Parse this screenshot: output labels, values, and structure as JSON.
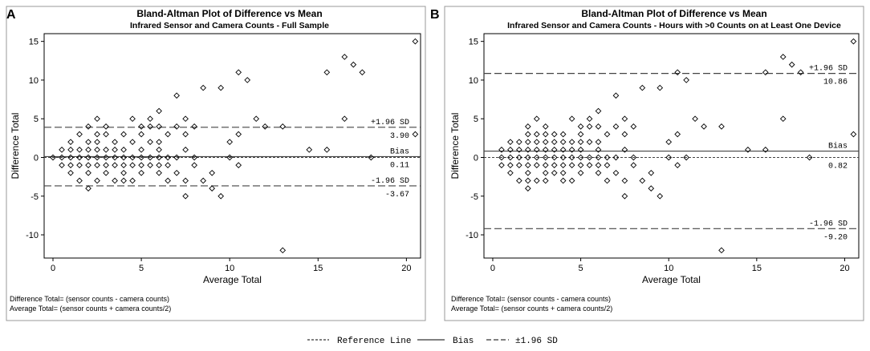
{
  "colors": {
    "axis": "#000000",
    "text": "#000000",
    "frame": "#999999",
    "marker": "#000000",
    "line": "#444444"
  },
  "legend": {
    "reference_label": "Reference Line",
    "bias_label": "Bias",
    "sd_label": "±1.96 SD"
  },
  "chart_data": [
    {
      "panel_label": "A",
      "type": "scatter",
      "title": "Bland-Altman Plot of Difference vs Mean",
      "subtitle": "Infrared Sensor and Camera Counts - Full Sample",
      "xlabel": "Average Total",
      "ylabel": "Difference Total",
      "xlim": [
        -0.5,
        20.8
      ],
      "ylim": [
        -13,
        16
      ],
      "xticks": [
        0,
        5,
        10,
        15,
        20
      ],
      "yticks": [
        -10,
        -5,
        0,
        5,
        10,
        15
      ],
      "reference_line": 0,
      "bias": {
        "value": 0.11,
        "label": "Bias",
        "value_text": "0.11"
      },
      "upper_loa": {
        "value": 3.9,
        "label": "+1.96 SD",
        "value_text": "3.90"
      },
      "lower_loa": {
        "value": -3.67,
        "label": "-1.96 SD",
        "value_text": "-3.67"
      },
      "footnotes": [
        "Difference Total= (sensor counts - camera counts)",
        "Average Total= (sensor counts + camera counts/2)"
      ],
      "points": [
        [
          0,
          0
        ],
        [
          0.5,
          0
        ],
        [
          0.5,
          1
        ],
        [
          0.5,
          -1
        ],
        [
          1,
          0
        ],
        [
          1,
          1
        ],
        [
          1,
          2
        ],
        [
          1,
          -1
        ],
        [
          1,
          -2
        ],
        [
          1.5,
          0
        ],
        [
          1.5,
          1
        ],
        [
          1.5,
          3
        ],
        [
          1.5,
          -1
        ],
        [
          1.5,
          -3
        ],
        [
          2,
          0
        ],
        [
          2,
          1
        ],
        [
          2,
          2
        ],
        [
          2,
          4
        ],
        [
          2,
          -1
        ],
        [
          2,
          -2
        ],
        [
          2,
          -4
        ],
        [
          2.5,
          0
        ],
        [
          2.5,
          1
        ],
        [
          2.5,
          2
        ],
        [
          2.5,
          3
        ],
        [
          2.5,
          5
        ],
        [
          2.5,
          -1
        ],
        [
          2.5,
          -3
        ],
        [
          3,
          0
        ],
        [
          3,
          1
        ],
        [
          3,
          3
        ],
        [
          3,
          4
        ],
        [
          3,
          -1
        ],
        [
          3,
          -2
        ],
        [
          3.5,
          0
        ],
        [
          3.5,
          1
        ],
        [
          3.5,
          2
        ],
        [
          3.5,
          -1
        ],
        [
          3.5,
          -3
        ],
        [
          4,
          0
        ],
        [
          4,
          1
        ],
        [
          4,
          3
        ],
        [
          4,
          -1
        ],
        [
          4,
          -2
        ],
        [
          4,
          -3
        ],
        [
          4.5,
          0
        ],
        [
          4.5,
          2
        ],
        [
          4.5,
          5
        ],
        [
          4.5,
          -1
        ],
        [
          4.5,
          -3
        ],
        [
          5,
          0
        ],
        [
          5,
          1
        ],
        [
          5,
          3
        ],
        [
          5,
          4
        ],
        [
          5,
          -1
        ],
        [
          5,
          -2
        ],
        [
          5.5,
          0
        ],
        [
          5.5,
          2
        ],
        [
          5.5,
          4
        ],
        [
          5.5,
          5
        ],
        [
          5.5,
          -1
        ],
        [
          6,
          0
        ],
        [
          6,
          1
        ],
        [
          6,
          2
        ],
        [
          6,
          4
        ],
        [
          6,
          6
        ],
        [
          6,
          -1
        ],
        [
          6,
          -2
        ],
        [
          6.5,
          0
        ],
        [
          6.5,
          3
        ],
        [
          6.5,
          -1
        ],
        [
          6.5,
          -3
        ],
        [
          7,
          0
        ],
        [
          7,
          4
        ],
        [
          7,
          8
        ],
        [
          7,
          -2
        ],
        [
          7.5,
          1
        ],
        [
          7.5,
          3
        ],
        [
          7.5,
          5
        ],
        [
          7.5,
          -3
        ],
        [
          7.5,
          -5
        ],
        [
          8,
          0
        ],
        [
          8,
          4
        ],
        [
          8,
          -1
        ],
        [
          8.5,
          9
        ],
        [
          8.5,
          -3
        ],
        [
          9,
          -2
        ],
        [
          9,
          -4
        ],
        [
          9.5,
          9
        ],
        [
          9.5,
          -5
        ],
        [
          10,
          2
        ],
        [
          10,
          0
        ],
        [
          10.5,
          11
        ],
        [
          10.5,
          3
        ],
        [
          10.5,
          -1
        ],
        [
          11,
          10
        ],
        [
          11.5,
          5
        ],
        [
          12,
          4
        ],
        [
          13,
          4
        ],
        [
          13,
          -12
        ],
        [
          14.5,
          1
        ],
        [
          15.5,
          11
        ],
        [
          15.5,
          1
        ],
        [
          16.5,
          13
        ],
        [
          16.5,
          5
        ],
        [
          17,
          12
        ],
        [
          17.5,
          11
        ],
        [
          18,
          0
        ],
        [
          20.5,
          15
        ],
        [
          20.5,
          3
        ]
      ]
    },
    {
      "panel_label": "B",
      "type": "scatter",
      "title": "Bland-Altman Plot of Difference vs Mean",
      "subtitle": "Infrared Sensor and Camera Counts - Hours with >0 Counts on at Least One Device",
      "xlabel": "Average Total",
      "ylabel": "Difference Total",
      "xlim": [
        -0.5,
        20.8
      ],
      "ylim": [
        -13,
        16
      ],
      "xticks": [
        0,
        5,
        10,
        15,
        20
      ],
      "yticks": [
        -10,
        -5,
        0,
        5,
        10,
        15
      ],
      "reference_line": 0,
      "bias": {
        "value": 0.82,
        "label": "Bias",
        "value_text": "0.82"
      },
      "upper_loa": {
        "value": 10.86,
        "label": "+1.96 SD",
        "value_text": "10.86"
      },
      "lower_loa": {
        "value": -9.2,
        "label": "-1.96 SD",
        "value_text": "-9.20"
      },
      "footnotes": [
        "Difference Total= (sensor counts - camera counts)",
        "Average Total= (sensor counts + camera counts/2)"
      ],
      "points": [
        [
          0.5,
          1
        ],
        [
          0.5,
          0
        ],
        [
          0.5,
          -1
        ],
        [
          1,
          1
        ],
        [
          1,
          0
        ],
        [
          1,
          -1
        ],
        [
          1,
          2
        ],
        [
          1,
          -2
        ],
        [
          1.5,
          2
        ],
        [
          1.5,
          1
        ],
        [
          1.5,
          0
        ],
        [
          1.5,
          -1
        ],
        [
          1.5,
          -3
        ],
        [
          2,
          4
        ],
        [
          2,
          3
        ],
        [
          2,
          2
        ],
        [
          2,
          1
        ],
        [
          2,
          0
        ],
        [
          2,
          -1
        ],
        [
          2,
          -2
        ],
        [
          2,
          -3
        ],
        [
          2,
          -4
        ],
        [
          2.5,
          5
        ],
        [
          2.5,
          3
        ],
        [
          2.5,
          2
        ],
        [
          2.5,
          1
        ],
        [
          2.5,
          0
        ],
        [
          2.5,
          -1
        ],
        [
          2.5,
          -3
        ],
        [
          3,
          4
        ],
        [
          3,
          3
        ],
        [
          3,
          2
        ],
        [
          3,
          1
        ],
        [
          3,
          0
        ],
        [
          3,
          -1
        ],
        [
          3,
          -2
        ],
        [
          3,
          -3
        ],
        [
          3.5,
          3
        ],
        [
          3.5,
          2
        ],
        [
          3.5,
          1
        ],
        [
          3.5,
          0
        ],
        [
          3.5,
          -1
        ],
        [
          3.5,
          -2
        ],
        [
          4,
          3
        ],
        [
          4,
          2
        ],
        [
          4,
          1
        ],
        [
          4,
          0
        ],
        [
          4,
          -1
        ],
        [
          4,
          -2
        ],
        [
          4,
          -3
        ],
        [
          4.5,
          5
        ],
        [
          4.5,
          2
        ],
        [
          4.5,
          1
        ],
        [
          4.5,
          0
        ],
        [
          4.5,
          -1
        ],
        [
          4.5,
          -3
        ],
        [
          5,
          4
        ],
        [
          5,
          3
        ],
        [
          5,
          2
        ],
        [
          5,
          1
        ],
        [
          5,
          0
        ],
        [
          5,
          -1
        ],
        [
          5,
          -2
        ],
        [
          5.5,
          5
        ],
        [
          5.5,
          4
        ],
        [
          5.5,
          2
        ],
        [
          5.5,
          0
        ],
        [
          5.5,
          -1
        ],
        [
          6,
          6
        ],
        [
          6,
          4
        ],
        [
          6,
          2
        ],
        [
          6,
          1
        ],
        [
          6,
          0
        ],
        [
          6,
          -1
        ],
        [
          6,
          -2
        ],
        [
          6.5,
          3
        ],
        [
          6.5,
          0
        ],
        [
          6.5,
          -1
        ],
        [
          6.5,
          -3
        ],
        [
          7,
          8
        ],
        [
          7,
          4
        ],
        [
          7,
          0
        ],
        [
          7,
          -2
        ],
        [
          7.5,
          5
        ],
        [
          7.5,
          3
        ],
        [
          7.5,
          1
        ],
        [
          7.5,
          -3
        ],
        [
          7.5,
          -5
        ],
        [
          8,
          4
        ],
        [
          8,
          0
        ],
        [
          8,
          -1
        ],
        [
          8.5,
          9
        ],
        [
          8.5,
          -3
        ],
        [
          9,
          -2
        ],
        [
          9,
          -4
        ],
        [
          9.5,
          9
        ],
        [
          9.5,
          -5
        ],
        [
          10,
          2
        ],
        [
          10,
          0
        ],
        [
          10.5,
          11
        ],
        [
          10.5,
          3
        ],
        [
          10.5,
          -1
        ],
        [
          11,
          10
        ],
        [
          11,
          0
        ],
        [
          11.5,
          5
        ],
        [
          12,
          4
        ],
        [
          13,
          4
        ],
        [
          13,
          -12
        ],
        [
          14.5,
          1
        ],
        [
          15.5,
          11
        ],
        [
          15.5,
          1
        ],
        [
          16.5,
          13
        ],
        [
          16.5,
          5
        ],
        [
          17,
          12
        ],
        [
          17.5,
          11
        ],
        [
          18,
          0
        ],
        [
          20.5,
          15
        ],
        [
          20.5,
          3
        ]
      ]
    }
  ]
}
